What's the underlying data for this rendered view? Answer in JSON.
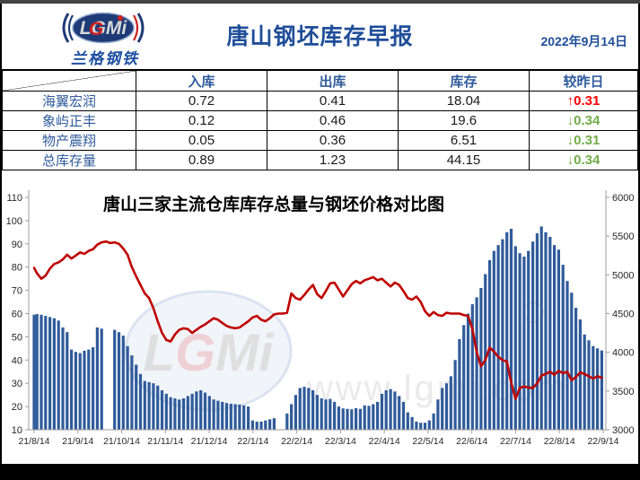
{
  "header": {
    "logo_text": "LGMi",
    "logo_subtext": "兰格钢铁",
    "title": "唐山钢坯库存早报",
    "date": "2022年9月14日"
  },
  "table": {
    "columns": [
      "",
      "入库",
      "出库",
      "库存",
      "较昨日"
    ],
    "status_colors": {
      "up": "#FF0000",
      "down": "#70AD47"
    },
    "rows": [
      {
        "label": "海翼宏润",
        "in": "0.72",
        "out": "0.41",
        "stock": "18.04",
        "change": "↑0.31",
        "direction": "up"
      },
      {
        "label": "象屿正丰",
        "in": "0.12",
        "out": "0.46",
        "stock": "19.6",
        "change": "↓0.34",
        "direction": "down"
      },
      {
        "label": "物产震翔",
        "in": "0.05",
        "out": "0.36",
        "stock": "6.51",
        "change": "↓0.31",
        "direction": "down"
      },
      {
        "label": "总库存量",
        "in": "0.89",
        "out": "1.23",
        "stock": "44.15",
        "change": "↓0.34",
        "direction": "down"
      }
    ]
  },
  "chart_data": {
    "type": "bar+line",
    "title": "唐山三家主流仓库库存总量与钢坯价格对比图",
    "legend": "none",
    "grid": "off",
    "watermark": {
      "logo": "LGMi",
      "url": "www.lgmi.com"
    },
    "left_axis": {
      "min": 10,
      "max": 110,
      "step": 10,
      "applies_to": "库存总量(万吨)"
    },
    "right_axis": {
      "min": 3000,
      "max": 6000,
      "step": 500,
      "applies_to": "钢坯价格(元/吨)"
    },
    "x_labels": [
      "21/8/14",
      "21/9/14",
      "21/10/14",
      "21/11/14",
      "21/12/14",
      "22/1/14",
      "22/2/14",
      "22/3/14",
      "22/4/14",
      "22/5/14",
      "22/6/14",
      "22/7/14",
      "22/8/14",
      "22/9/14"
    ],
    "x_domain_days": [
      0,
      396
    ],
    "colors": {
      "bar": "#2F5B9B",
      "line": "#C00000"
    },
    "days": [
      0,
      2,
      5,
      8,
      11,
      14,
      17,
      20,
      23,
      26,
      29,
      32,
      35,
      38,
      41,
      44,
      47,
      50,
      53,
      56,
      59,
      62,
      65,
      68,
      71,
      74,
      77,
      80,
      83,
      86,
      89,
      92,
      95,
      98,
      101,
      104,
      107,
      110,
      113,
      116,
      119,
      122,
      125,
      128,
      131,
      134,
      137,
      140,
      143,
      146,
      149,
      152,
      155,
      158,
      161,
      164,
      167,
      170,
      173,
      176,
      179,
      182,
      185,
      188,
      191,
      194,
      197,
      200,
      203,
      206,
      209,
      212,
      215,
      218,
      221,
      224,
      227,
      230,
      233,
      236,
      239,
      242,
      245,
      248,
      251,
      254,
      257,
      260,
      263,
      266,
      269,
      272,
      275,
      278,
      281,
      284,
      287,
      290,
      293,
      296,
      299,
      302,
      305,
      308,
      311,
      314,
      317,
      320,
      323,
      326,
      329,
      332,
      335,
      338,
      341,
      344,
      347,
      350,
      353,
      356,
      359,
      362,
      365,
      368,
      371,
      374,
      377,
      380,
      383,
      386,
      389,
      392,
      395
    ],
    "series": [
      {
        "name": "库存总量",
        "type": "bar",
        "axis": "left",
        "values": [
          59.5,
          59.8,
          59.5,
          59,
          58.5,
          58,
          57,
          54,
          52,
          44.5,
          43.5,
          43,
          44,
          44.5,
          45.5,
          54,
          53.5,
          null,
          null,
          53,
          52,
          50.5,
          46,
          42,
          38,
          34,
          31,
          30.5,
          30,
          29,
          27,
          25.5,
          24,
          23.5,
          23,
          23.5,
          24.5,
          25.5,
          26.5,
          27,
          26,
          24.5,
          23,
          22.5,
          22,
          21.5,
          21.2,
          21,
          20.8,
          20.5,
          20,
          14,
          13.5,
          13.5,
          14,
          14.5,
          15,
          null,
          null,
          17,
          21,
          25,
          28,
          28.5,
          28,
          27,
          25,
          23.5,
          23,
          23.3,
          22,
          20,
          19.2,
          19,
          18.8,
          19.3,
          19,
          20.5,
          20.3,
          21,
          22,
          25.5,
          27,
          27.5,
          26.5,
          24.5,
          22,
          17.5,
          15.5,
          13.5,
          13,
          13,
          14,
          17,
          23,
          28,
          30,
          33,
          40,
          49,
          55,
          60,
          64,
          67,
          71,
          77,
          83,
          87,
          89.5,
          92,
          95,
          96.5,
          89,
          86,
          84.5,
          87,
          91,
          94.5,
          97.5,
          95,
          93,
          89.5,
          87.5,
          81,
          74,
          69,
          62.5,
          57.5,
          51,
          48.5,
          46,
          45,
          44.15
        ]
      },
      {
        "name": "钢坯价格",
        "type": "line",
        "axis": "right",
        "values": [
          5090,
          5020,
          4950,
          4990,
          5080,
          5140,
          5160,
          5200,
          5260,
          5210,
          5250,
          5290,
          5270,
          5310,
          5330,
          5390,
          5420,
          5430,
          5410,
          5420,
          5400,
          5340,
          5260,
          5100,
          4980,
          4870,
          4760,
          4700,
          4570,
          4400,
          4250,
          4160,
          4140,
          4230,
          4290,
          4310,
          4300,
          4250,
          4290,
          4330,
          4360,
          4400,
          4440,
          4420,
          4380,
          4340,
          4320,
          4310,
          4320,
          4360,
          4400,
          4450,
          4470,
          4420,
          4400,
          4440,
          4490,
          4500,
          4500,
          4510,
          4760,
          4700,
          4680,
          4740,
          4810,
          4870,
          4750,
          4700,
          4790,
          4890,
          4900,
          4810,
          4720,
          4800,
          4880,
          4920,
          4890,
          4930,
          4950,
          4970,
          4930,
          4950,
          4900,
          4850,
          4900,
          4870,
          4790,
          4700,
          4680,
          4720,
          4650,
          4530,
          4470,
          4520,
          4480,
          4470,
          4510,
          4500,
          4500,
          4500,
          4480,
          4470,
          4300,
          4000,
          3820,
          3900,
          4060,
          4010,
          3940,
          3900,
          3880,
          3610,
          3400,
          3540,
          3560,
          3545,
          3540,
          3600,
          3700,
          3720,
          3750,
          3710,
          3760,
          3730,
          3750,
          3640,
          3680,
          3740,
          3720,
          3690,
          3660,
          3690,
          3670
        ]
      }
    ]
  }
}
